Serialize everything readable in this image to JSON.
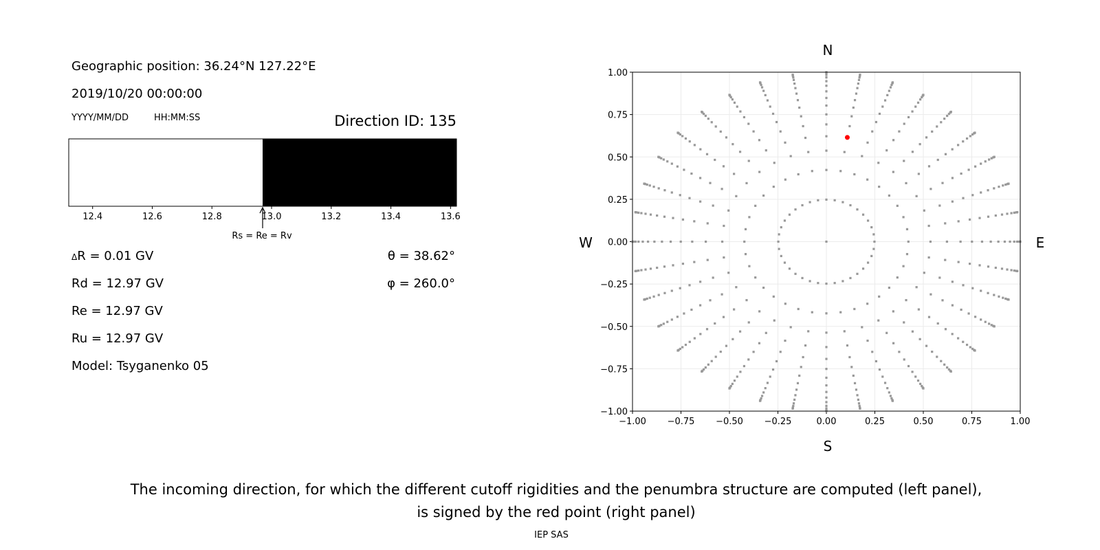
{
  "left_panel": {
    "geo_position": "Geographic position: 36.24°N 127.22°E",
    "datetime": "2019/10/20 00:00:00",
    "date_format": "YYYY/MM/DD",
    "time_format": "HH:MM:SS",
    "direction_id": "Direction ID: 135",
    "delta_r_symbol": "Δ",
    "delta_r": "R = 0.01 GV",
    "rd": "Rd = 12.97 GV",
    "re": "Re = 12.97 GV",
    "ru": "Ru = 12.97 GV",
    "model": "Model: Tsyganenko 05",
    "theta": "θ = 38.62°",
    "phi": "φ = 260.0°",
    "annotation": "Rs = Re = Rv"
  },
  "chart_data": [
    {
      "type": "bar",
      "description_kind": "penumbra",
      "xlim": [
        12.32,
        13.62
      ],
      "xticks": [
        "12.4",
        "12.6",
        "12.8",
        "13.0",
        "13.2",
        "13.4",
        "13.6"
      ],
      "xtick_values": [
        12.4,
        12.6,
        12.8,
        13.0,
        13.2,
        13.4,
        13.6
      ],
      "segments": [
        {
          "from": 12.32,
          "to": 12.97,
          "color": "#ffffff"
        },
        {
          "from": 12.97,
          "to": 13.62,
          "color": "#000000"
        }
      ],
      "arrow_at": 12.97
    },
    {
      "type": "scatter",
      "xlim": [
        -1,
        1
      ],
      "ylim": [
        -1,
        1
      ],
      "grid": true,
      "xticks": [
        "−1.00",
        "−0.75",
        "−0.50",
        "−0.25",
        "0.00",
        "0.25",
        "0.50",
        "0.75",
        "1.00"
      ],
      "yticks": [
        "−1.00",
        "−0.75",
        "−0.50",
        "−0.25",
        "0.00",
        "0.25",
        "0.50",
        "0.75",
        "1.00"
      ],
      "tick_values": [
        -1,
        -0.75,
        -0.5,
        -0.25,
        0,
        0.25,
        0.5,
        0.75,
        1
      ],
      "compass": {
        "top": "N",
        "bottom": "S",
        "left": "W",
        "right": "E"
      },
      "grey_points": {
        "color": "#999999",
        "center": [
          0,
          0
        ],
        "azimuths_deg": [
          0,
          10,
          20,
          30,
          40,
          50,
          60,
          70,
          80,
          90,
          100,
          110,
          120,
          130,
          140,
          150,
          160,
          170,
          180,
          190,
          200,
          210,
          220,
          230,
          240,
          250,
          260,
          270,
          280,
          290,
          300,
          310,
          320,
          330,
          340,
          350
        ],
        "radii": [
          0.248,
          0.423,
          0.537,
          0.622,
          0.692,
          0.751,
          0.803,
          0.848,
          0.887,
          0.92,
          0.947,
          0.969,
          0.984,
          0.994,
          0.999,
          1.0
        ]
      },
      "red_point": {
        "x": 0.108,
        "y": 0.615,
        "color": "#ff0000"
      }
    }
  ],
  "caption": {
    "line1": "The incoming direction, for which the different cutoff rigidities and the penumbra structure are computed (left panel),",
    "line2": "is signed by the red point (right panel)"
  },
  "footer": "IEP SAS"
}
